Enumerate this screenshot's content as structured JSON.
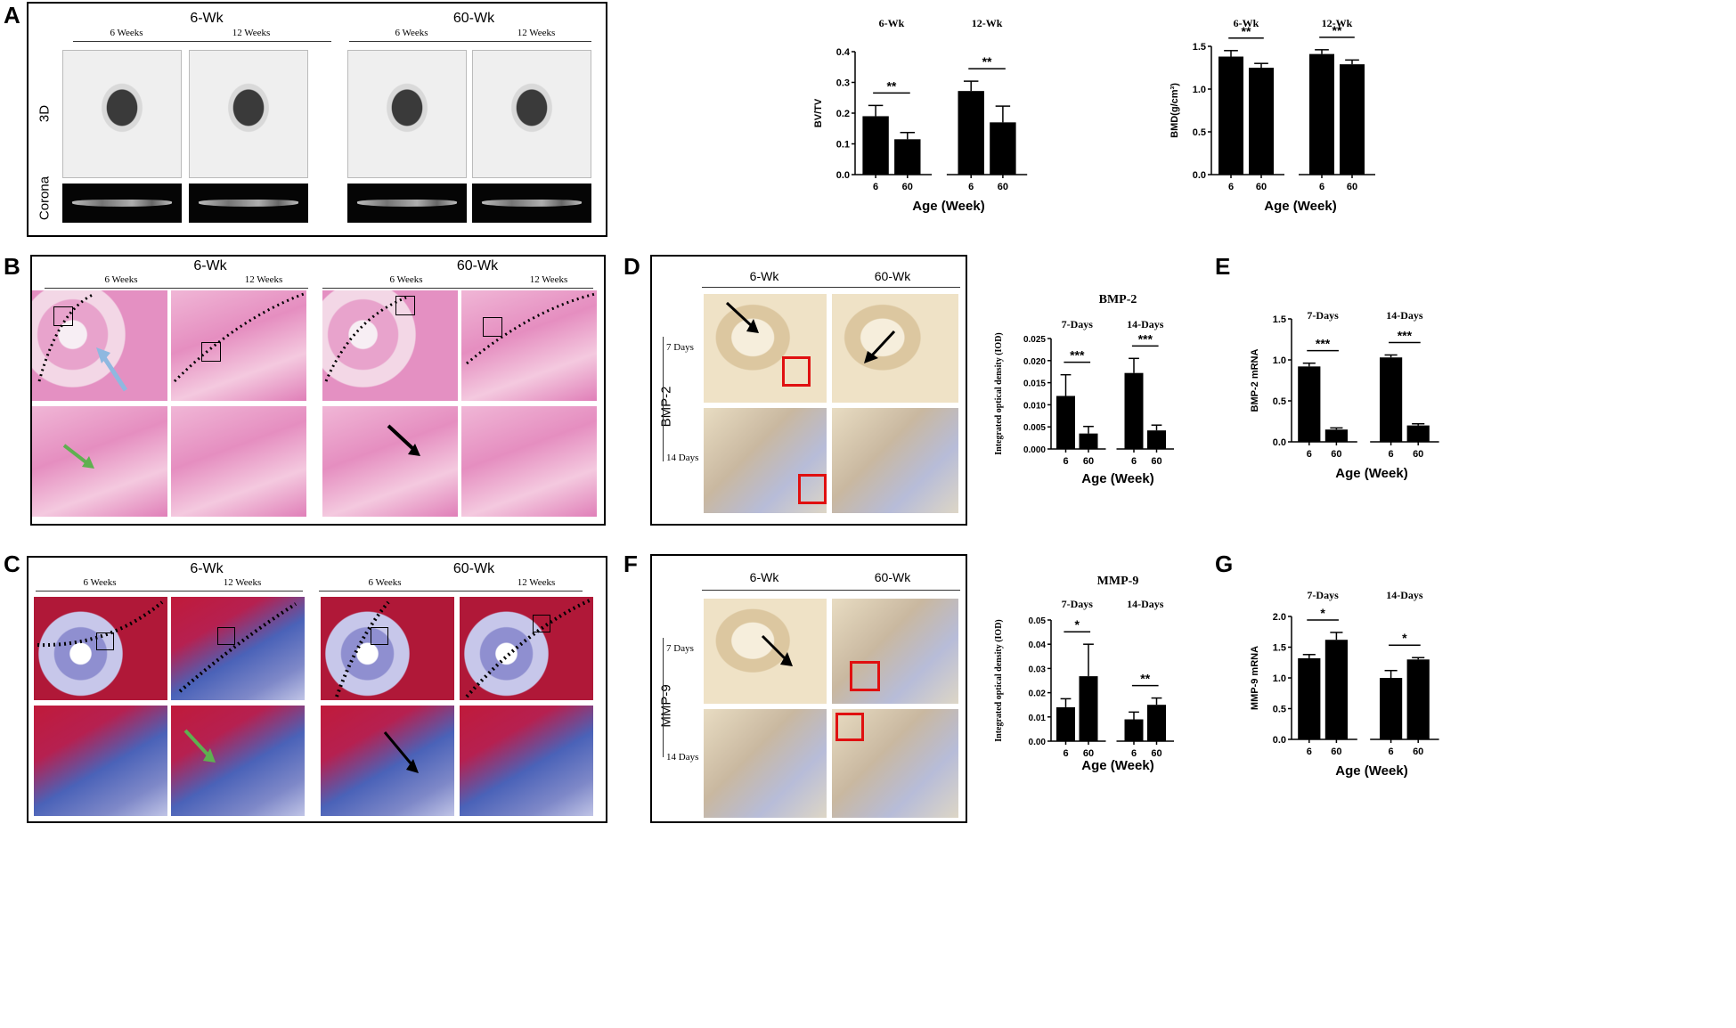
{
  "panels": {
    "A": {
      "letter": "A",
      "groups": [
        "6-Wk",
        "60-Wk"
      ],
      "subs": [
        "6 Weeks",
        "12 Weeks",
        "6 Weeks",
        "12 Weeks"
      ],
      "rows": [
        "3D",
        "Corona"
      ]
    },
    "B": {
      "letter": "B",
      "groups": [
        "6-Wk",
        "60-Wk"
      ],
      "subs": [
        "6 Weeks",
        "12 Weeks",
        "6 Weeks",
        "12 Weeks"
      ]
    },
    "C": {
      "letter": "C",
      "groups": [
        "6-Wk",
        "60-Wk"
      ],
      "subs": [
        "6 Weeks",
        "12 Weeks",
        "6 Weeks",
        "12 Weeks"
      ]
    },
    "D": {
      "letter": "D",
      "groups": [
        "6-Wk",
        "60-Wk"
      ],
      "row_label": "BMP-2",
      "times": [
        "7 Days",
        "14 Days"
      ]
    },
    "E": {
      "letter": "E"
    },
    "F": {
      "letter": "F",
      "groups": [
        "6-Wk",
        "60-Wk"
      ],
      "row_label": "MMP-9",
      "times": [
        "7 Days",
        "14 Days"
      ]
    },
    "G": {
      "letter": "G"
    }
  },
  "chart_data": [
    {
      "id": "A-bvtv",
      "type": "bar",
      "title": "",
      "groups": [
        "6-Wk",
        "12-Wk"
      ],
      "categories": [
        "6",
        "60",
        "6",
        "60"
      ],
      "values": [
        0.19,
        0.115,
        0.272,
        0.17
      ],
      "errors": [
        0.035,
        0.022,
        0.032,
        0.053
      ],
      "xlabel": "Age (Week)",
      "ylabel": "BV/TV",
      "ylim": [
        0,
        0.4
      ],
      "yticks": [
        "0.0",
        "0.1",
        "0.2",
        "0.3",
        "0.4"
      ],
      "sig": [
        "**",
        "**"
      ]
    },
    {
      "id": "A-bmd",
      "type": "bar",
      "title": "",
      "groups": [
        "6-Wk",
        "12-Wk"
      ],
      "categories": [
        "6",
        "60",
        "6",
        "60"
      ],
      "values": [
        1.38,
        1.25,
        1.41,
        1.29
      ],
      "errors": [
        0.07,
        0.05,
        0.05,
        0.05
      ],
      "xlabel": "Age (Week)",
      "ylabel": "BMD(g/cm³)",
      "ylim": [
        0,
        1.5
      ],
      "yticks": [
        "0.0",
        "0.5",
        "1.0",
        "1.5"
      ],
      "sig": [
        "**",
        "**"
      ]
    },
    {
      "id": "D-bmp2",
      "type": "bar",
      "title": "BMP-2",
      "groups": [
        "7-Days",
        "14-Days"
      ],
      "categories": [
        "6",
        "60",
        "6",
        "60"
      ],
      "values": [
        0.012,
        0.0035,
        0.0172,
        0.0042
      ],
      "errors": [
        0.0048,
        0.0016,
        0.0033,
        0.0012
      ],
      "xlabel": "Age (Week)",
      "ylabel": "Integrated optical density (IOD)",
      "ylim": [
        0,
        0.025
      ],
      "yticks": [
        "0.000",
        "0.005",
        "0.010",
        "0.015",
        "0.020",
        "0.025"
      ],
      "sig": [
        "***",
        "***"
      ]
    },
    {
      "id": "E-bmp2mrna",
      "type": "bar",
      "title": "",
      "groups": [
        "7-Days",
        "14-Days"
      ],
      "categories": [
        "6",
        "60",
        "6",
        "60"
      ],
      "values": [
        0.92,
        0.15,
        1.03,
        0.2
      ],
      "errors": [
        0.04,
        0.02,
        0.03,
        0.02
      ],
      "xlabel": "Age (Week)",
      "ylabel": "BMP-2 mRNA",
      "ylim": [
        0,
        1.5
      ],
      "yticks": [
        "0.0",
        "0.5",
        "1.0",
        "1.5"
      ],
      "sig": [
        "***",
        "***"
      ]
    },
    {
      "id": "F-mmp9",
      "type": "bar",
      "title": "MMP-9",
      "groups": [
        "7-Days",
        "14-Days"
      ],
      "categories": [
        "6",
        "60",
        "6",
        "60"
      ],
      "values": [
        0.014,
        0.0268,
        0.009,
        0.015
      ],
      "errors": [
        0.0035,
        0.0132,
        0.003,
        0.0028
      ],
      "xlabel": "Age (Week)",
      "ylabel": "Integrated optical density (IOD)",
      "ylim": [
        0,
        0.05
      ],
      "yticks": [
        "0.00",
        "0.01",
        "0.02",
        "0.03",
        "0.04",
        "0.05"
      ],
      "sig": [
        "*",
        "**"
      ]
    },
    {
      "id": "G-mmp9mrna",
      "type": "bar",
      "title": "",
      "groups": [
        "7-Days",
        "14-Days"
      ],
      "categories": [
        "6",
        "60",
        "6",
        "60"
      ],
      "values": [
        1.32,
        1.62,
        1.0,
        1.3
      ],
      "errors": [
        0.06,
        0.12,
        0.12,
        0.03
      ],
      "xlabel": "Age (Week)",
      "ylabel": "MMP-9 mRNA",
      "ylim": [
        0,
        2.0
      ],
      "yticks": [
        "0.0",
        "0.5",
        "1.0",
        "1.5",
        "2.0"
      ],
      "sig": [
        "*",
        "*"
      ]
    }
  ]
}
